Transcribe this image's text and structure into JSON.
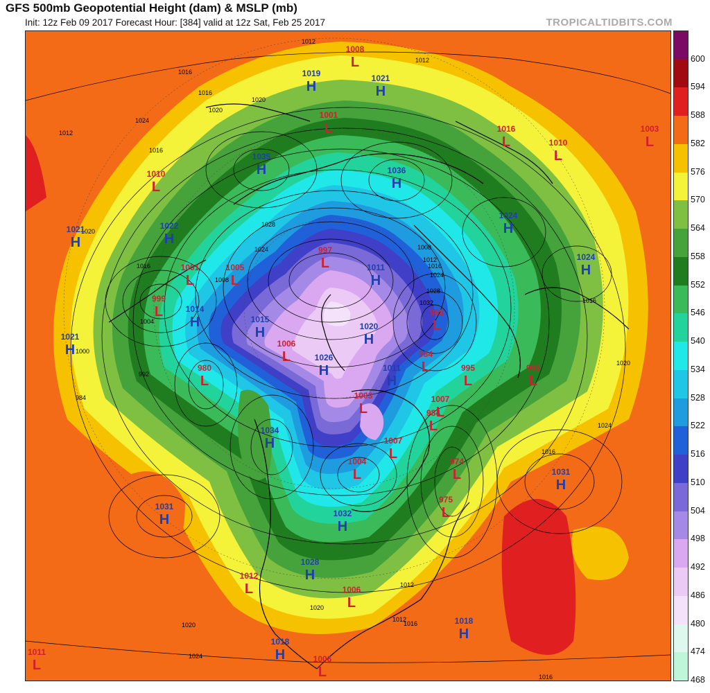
{
  "header": {
    "title": "GFS 500mb Geopotential Height (dam) & MSLP (mb)",
    "subtitle": "Init: 12z Feb 09 2017   Forecast Hour: [384]   valid at 12z Sat, Feb 25 2017",
    "credit": "TROPICALTIDBITS.COM"
  },
  "colorbar": {
    "labels": [
      "600",
      "594",
      "588",
      "582",
      "576",
      "570",
      "564",
      "558",
      "552",
      "546",
      "540",
      "534",
      "528",
      "522",
      "516",
      "510",
      "504",
      "498",
      "492",
      "486",
      "480",
      "474",
      "468"
    ],
    "colors": [
      "#7a0a63",
      "#a00a10",
      "#e02020",
      "#f36a17",
      "#f6c200",
      "#f5f23a",
      "#7fc043",
      "#46a23a",
      "#1f7d1f",
      "#3aba59",
      "#22d39c",
      "#21e8e8",
      "#1fc6e6",
      "#1f9be0",
      "#2060d8",
      "#3f3fc8",
      "#7a6ad8",
      "#a48ae6",
      "#d9a8f0",
      "#eccaf6",
      "#f4e2fa",
      "#def8ee",
      "#bff5d8"
    ]
  },
  "map": {
    "pressure_systems": [
      {
        "type": "L",
        "value": "1008"
      },
      {
        "type": "H",
        "value": "1019"
      },
      {
        "type": "H",
        "value": "1021"
      },
      {
        "type": "L",
        "value": "1001"
      },
      {
        "type": "L",
        "value": "1016"
      },
      {
        "type": "L",
        "value": "1010"
      },
      {
        "type": "L",
        "value": "1003"
      },
      {
        "type": "L",
        "value": "1010"
      },
      {
        "type": "H",
        "value": "1035"
      },
      {
        "type": "H",
        "value": "1036"
      },
      {
        "type": "H",
        "value": "1021"
      },
      {
        "type": "H",
        "value": "1022"
      },
      {
        "type": "H",
        "value": "1024"
      },
      {
        "type": "H",
        "value": "1024"
      },
      {
        "type": "L",
        "value": "997"
      },
      {
        "type": "L",
        "value": "1001"
      },
      {
        "type": "L",
        "value": "1005"
      },
      {
        "type": "H",
        "value": "1011"
      },
      {
        "type": "L",
        "value": "999"
      },
      {
        "type": "H",
        "value": "1014"
      },
      {
        "type": "H",
        "value": "1015"
      },
      {
        "type": "L",
        "value": "968"
      },
      {
        "type": "H",
        "value": "1020"
      },
      {
        "type": "H",
        "value": "1021"
      },
      {
        "type": "L",
        "value": "1006"
      },
      {
        "type": "L",
        "value": "984"
      },
      {
        "type": "L",
        "value": "980"
      },
      {
        "type": "H",
        "value": "1026"
      },
      {
        "type": "H",
        "value": "1011"
      },
      {
        "type": "L",
        "value": "995"
      },
      {
        "type": "L",
        "value": "995"
      },
      {
        "type": "L",
        "value": "1003"
      },
      {
        "type": "L",
        "value": "1007"
      },
      {
        "type": "L",
        "value": "984"
      },
      {
        "type": "H",
        "value": "1034"
      },
      {
        "type": "L",
        "value": "1007"
      },
      {
        "type": "L",
        "value": "1004"
      },
      {
        "type": "L",
        "value": "974"
      },
      {
        "type": "H",
        "value": "1031"
      },
      {
        "type": "H",
        "value": "1031"
      },
      {
        "type": "L",
        "value": "975"
      },
      {
        "type": "H",
        "value": "1032"
      },
      {
        "type": "H",
        "value": "1028"
      },
      {
        "type": "L",
        "value": "1012"
      },
      {
        "type": "L",
        "value": "1006"
      },
      {
        "type": "H",
        "value": "1018"
      },
      {
        "type": "H",
        "value": "1018"
      },
      {
        "type": "L",
        "value": "1011"
      },
      {
        "type": "L",
        "value": "1006"
      }
    ],
    "isobar_labels": [
      "1012",
      "1012",
      "1016",
      "1020",
      "1024",
      "1016",
      "1012",
      "1016",
      "1020",
      "1028",
      "1024",
      "1016",
      "1020",
      "1008",
      "1004",
      "1000",
      "992",
      "984",
      "1008",
      "1012",
      "1016",
      "1020",
      "1024",
      "1028",
      "1032",
      "1016",
      "1020",
      "1024",
      "1016",
      "1012",
      "1020",
      "1012",
      "1016",
      "1020",
      "1024",
      "1016"
    ],
    "colors": {
      "high": "#1f3fb0",
      "low": "#d01f2f",
      "isobar": "#000000",
      "coast": "#000000"
    }
  }
}
